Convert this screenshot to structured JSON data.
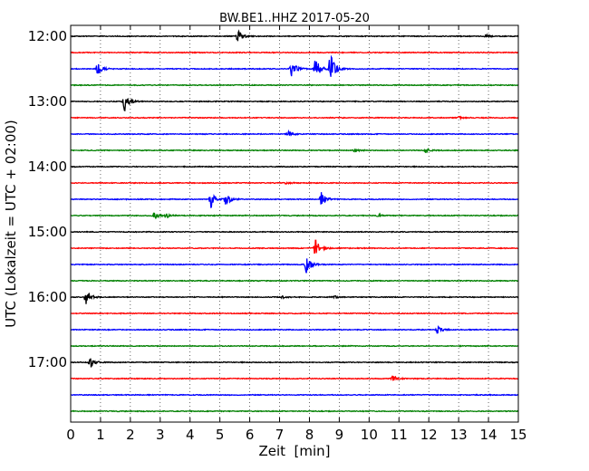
{
  "chart_data": {
    "type": "line",
    "title": "BW.BE1..HHZ 2017-05-20",
    "xlabel": "Zeit  [min]",
    "ylabel": "UTC (Lokalzeit = UTC + 02:00)",
    "xlim": [
      0,
      15
    ],
    "x_ticks": [
      "0",
      "1",
      "2",
      "3",
      "4",
      "5",
      "6",
      "7",
      "8",
      "9",
      "10",
      "11",
      "12",
      "13",
      "14",
      "15"
    ],
    "y_ticks": [
      "12:00",
      "13:00",
      "14:00",
      "15:00",
      "16:00",
      "17:00"
    ],
    "grid": "vertical-dotted",
    "trace_colors": [
      "#000000",
      "#ff0000",
      "#0000ff",
      "#008000"
    ],
    "traces": [
      {
        "start": "12:00",
        "events": [
          {
            "t": 5.6,
            "amp": 0.5
          },
          {
            "t": 13.9,
            "amp": 0.12
          }
        ]
      },
      {
        "start": "12:15",
        "events": []
      },
      {
        "start": "12:30",
        "events": [
          {
            "t": 0.9,
            "amp": 0.55
          },
          {
            "t": 7.4,
            "amp": 0.7
          },
          {
            "t": 8.2,
            "amp": 1.0
          },
          {
            "t": 8.7,
            "amp": 1.3
          }
        ]
      },
      {
        "start": "12:45",
        "events": []
      },
      {
        "start": "13:00",
        "events": [
          {
            "t": 1.8,
            "amp": 0.9
          }
        ]
      },
      {
        "start": "13:15",
        "events": [
          {
            "t": 13.0,
            "amp": 0.08
          }
        ]
      },
      {
        "start": "13:30",
        "events": [
          {
            "t": 7.3,
            "amp": 0.25
          }
        ]
      },
      {
        "start": "13:45",
        "events": [
          {
            "t": 9.5,
            "amp": 0.18
          },
          {
            "t": 11.9,
            "amp": 0.2
          }
        ]
      },
      {
        "start": "14:00",
        "events": []
      },
      {
        "start": "14:15",
        "events": [
          {
            "t": 7.2,
            "amp": 0.08
          }
        ]
      },
      {
        "start": "14:30",
        "events": [
          {
            "t": 4.7,
            "amp": 0.75
          },
          {
            "t": 5.2,
            "amp": 0.55
          },
          {
            "t": 8.4,
            "amp": 0.6
          }
        ]
      },
      {
        "start": "14:45",
        "events": [
          {
            "t": 2.8,
            "amp": 0.3
          },
          {
            "t": 3.2,
            "amp": 0.2
          },
          {
            "t": 10.3,
            "amp": 0.1
          }
        ]
      },
      {
        "start": "15:00",
        "events": []
      },
      {
        "start": "15:15",
        "events": [
          {
            "t": 8.2,
            "amp": 0.75
          }
        ]
      },
      {
        "start": "15:30",
        "events": [
          {
            "t": 7.9,
            "amp": 0.8
          }
        ]
      },
      {
        "start": "15:45",
        "events": []
      },
      {
        "start": "16:00",
        "events": [
          {
            "t": 0.5,
            "amp": 0.8
          },
          {
            "t": 8.8,
            "amp": 0.15
          },
          {
            "t": 7.1,
            "amp": 0.1
          }
        ]
      },
      {
        "start": "16:15",
        "events": []
      },
      {
        "start": "16:30",
        "events": [
          {
            "t": 12.3,
            "amp": 0.3
          }
        ]
      },
      {
        "start": "16:45",
        "events": []
      },
      {
        "start": "17:00",
        "events": [
          {
            "t": 0.65,
            "amp": 0.55
          }
        ]
      },
      {
        "start": "17:15",
        "events": [
          {
            "t": 10.8,
            "amp": 0.25
          }
        ]
      },
      {
        "start": "17:30",
        "events": []
      },
      {
        "start": "17:45",
        "events": []
      }
    ]
  }
}
